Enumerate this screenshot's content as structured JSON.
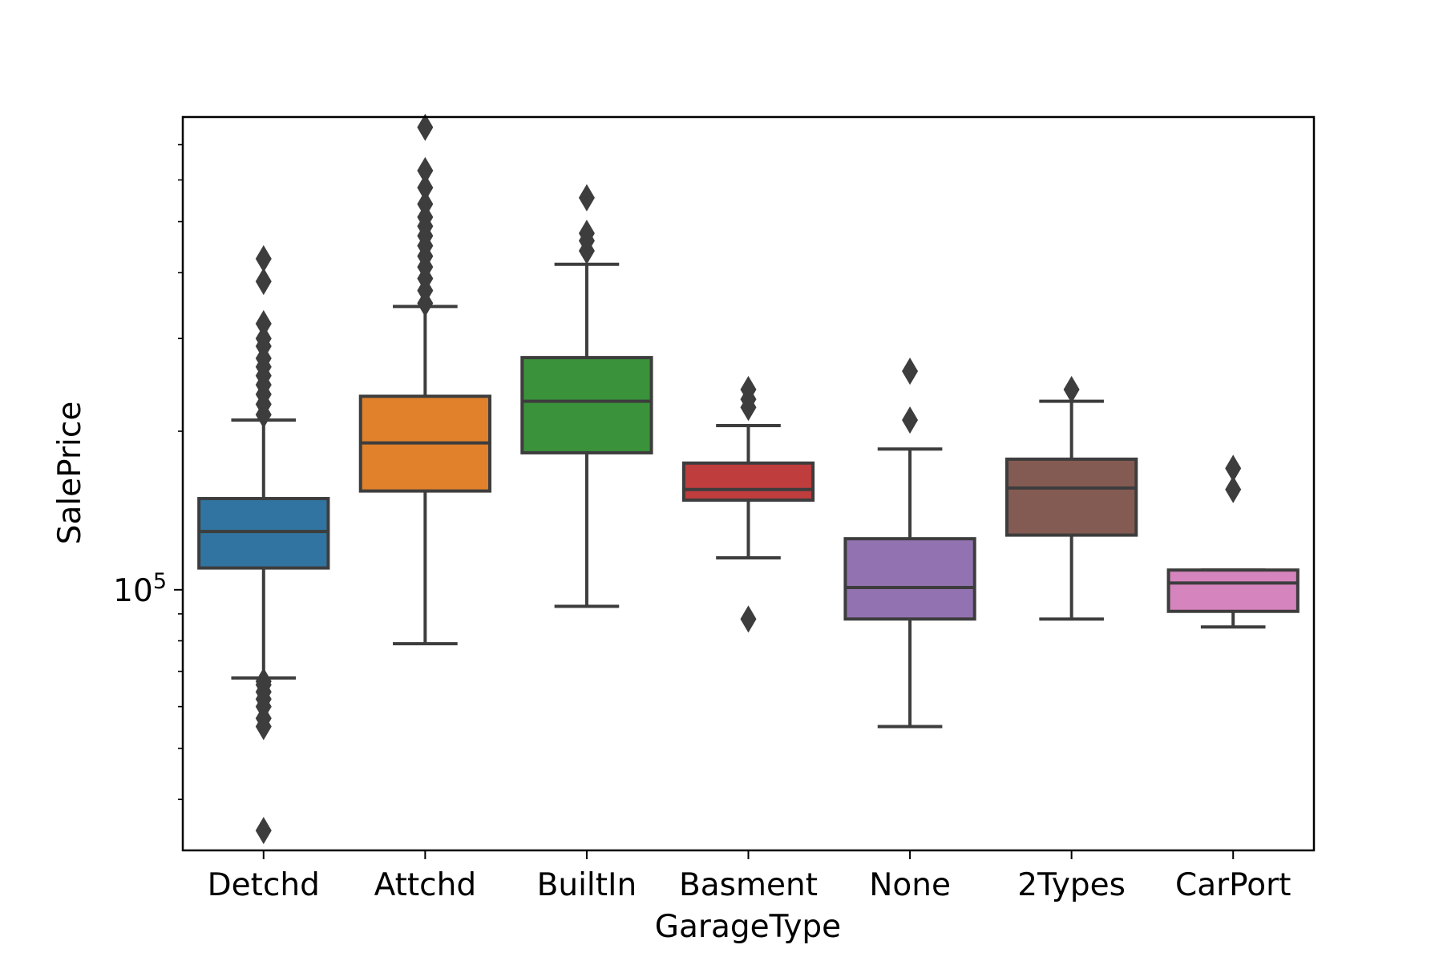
{
  "chart_data": {
    "type": "box",
    "xlabel": "GarageType",
    "ylabel": "SalePrice",
    "y_scale": "log",
    "y_major_tick": {
      "value": 100000,
      "label_base": "10",
      "label_exp": "5"
    },
    "y_minor_ticks": [
      30000,
      40000,
      50000,
      60000,
      70000,
      80000,
      90000,
      200000,
      300000,
      400000,
      500000,
      600000,
      700000
    ],
    "ylim": [
      32000,
      790000
    ],
    "grid": false,
    "legend": "none",
    "median_color": "#3d3d3d",
    "categories": [
      {
        "name": "Detchd",
        "color": "#3274a1",
        "whisker_low": 68000,
        "q1": 110000,
        "median": 129000,
        "q3": 149000,
        "whisker_high": 210000,
        "outliers": [
          34900,
          55000,
          57000,
          60000,
          62000,
          64000,
          66000,
          67000,
          215000,
          225000,
          235000,
          245000,
          255000,
          265000,
          275000,
          290000,
          300000,
          320000,
          385000,
          425000
        ]
      },
      {
        "name": "Attchd",
        "color": "#e1812c",
        "whisker_low": 79000,
        "q1": 154000,
        "median": 190000,
        "q3": 233000,
        "whisker_high": 345000,
        "outliers": [
          350000,
          370000,
          390000,
          410000,
          430000,
          450000,
          470000,
          490000,
          510000,
          540000,
          580000,
          625000,
          755000
        ]
      },
      {
        "name": "BuiltIn",
        "color": "#3a923a",
        "whisker_low": 93000,
        "q1": 182000,
        "median": 228000,
        "q3": 276000,
        "whisker_high": 415000,
        "outliers": [
          440000,
          460000,
          475000,
          555000
        ]
      },
      {
        "name": "Basment",
        "color": "#c03d3e",
        "whisker_low": 115000,
        "q1": 148000,
        "median": 155000,
        "q3": 174000,
        "whisker_high": 205000,
        "outliers": [
          88000,
          222000,
          230000,
          240000
        ]
      },
      {
        "name": "None",
        "color": "#9372b2",
        "whisker_low": 55000,
        "q1": 88000,
        "median": 101000,
        "q3": 125000,
        "whisker_high": 185000,
        "outliers": [
          210000,
          260000
        ]
      },
      {
        "name": "2Types",
        "color": "#845b53",
        "whisker_low": 88000,
        "q1": 127000,
        "median": 156000,
        "q3": 177000,
        "whisker_high": 228000,
        "outliers": [
          240000
        ]
      },
      {
        "name": "CarPort",
        "color": "#d684bd",
        "whisker_low": 85000,
        "q1": 91000,
        "median": 103000,
        "q3": 109000,
        "whisker_high": 109000,
        "outliers": [
          155000,
          170000
        ]
      }
    ]
  }
}
